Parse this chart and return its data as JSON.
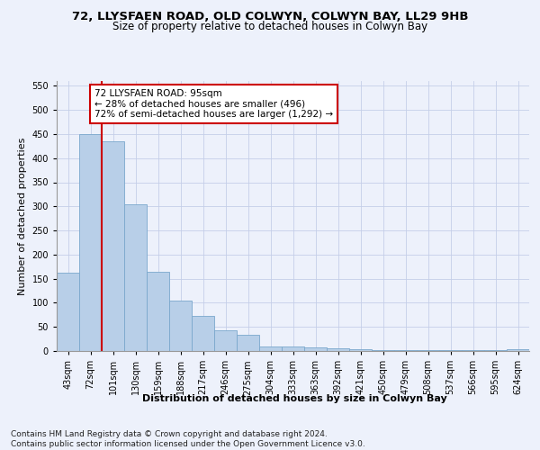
{
  "title1": "72, LLYSFAEN ROAD, OLD COLWYN, COLWYN BAY, LL29 9HB",
  "title2": "Size of property relative to detached houses in Colwyn Bay",
  "xlabel": "Distribution of detached houses by size in Colwyn Bay",
  "ylabel": "Number of detached properties",
  "categories": [
    "43sqm",
    "72sqm",
    "101sqm",
    "130sqm",
    "159sqm",
    "188sqm",
    "217sqm",
    "246sqm",
    "275sqm",
    "304sqm",
    "333sqm",
    "363sqm",
    "392sqm",
    "421sqm",
    "450sqm",
    "479sqm",
    "508sqm",
    "537sqm",
    "566sqm",
    "595sqm",
    "624sqm"
  ],
  "values": [
    163,
    450,
    435,
    305,
    165,
    105,
    73,
    43,
    33,
    10,
    10,
    8,
    5,
    3,
    2,
    2,
    1,
    1,
    1,
    1,
    4
  ],
  "bar_color": "#b8cfe8",
  "bar_edge_color": "#7aa8cc",
  "marker_color": "#cc0000",
  "annotation_text": "72 LLYSFAEN ROAD: 95sqm\n← 28% of detached houses are smaller (496)\n72% of semi-detached houses are larger (1,292) →",
  "annotation_box_facecolor": "#ffffff",
  "annotation_border_color": "#cc0000",
  "ylim": [
    0,
    560
  ],
  "yticks": [
    0,
    50,
    100,
    150,
    200,
    250,
    300,
    350,
    400,
    450,
    500,
    550
  ],
  "footer": "Contains HM Land Registry data © Crown copyright and database right 2024.\nContains public sector information licensed under the Open Government Licence v3.0.",
  "bg_color": "#edf1fb",
  "plot_bg_color": "#edf1fb",
  "grid_color": "#c5cfe8",
  "title1_fontsize": 9.5,
  "title2_fontsize": 8.5,
  "axis_label_fontsize": 8,
  "tick_fontsize": 7,
  "footer_fontsize": 6.5,
  "annotation_fontsize": 7.5
}
